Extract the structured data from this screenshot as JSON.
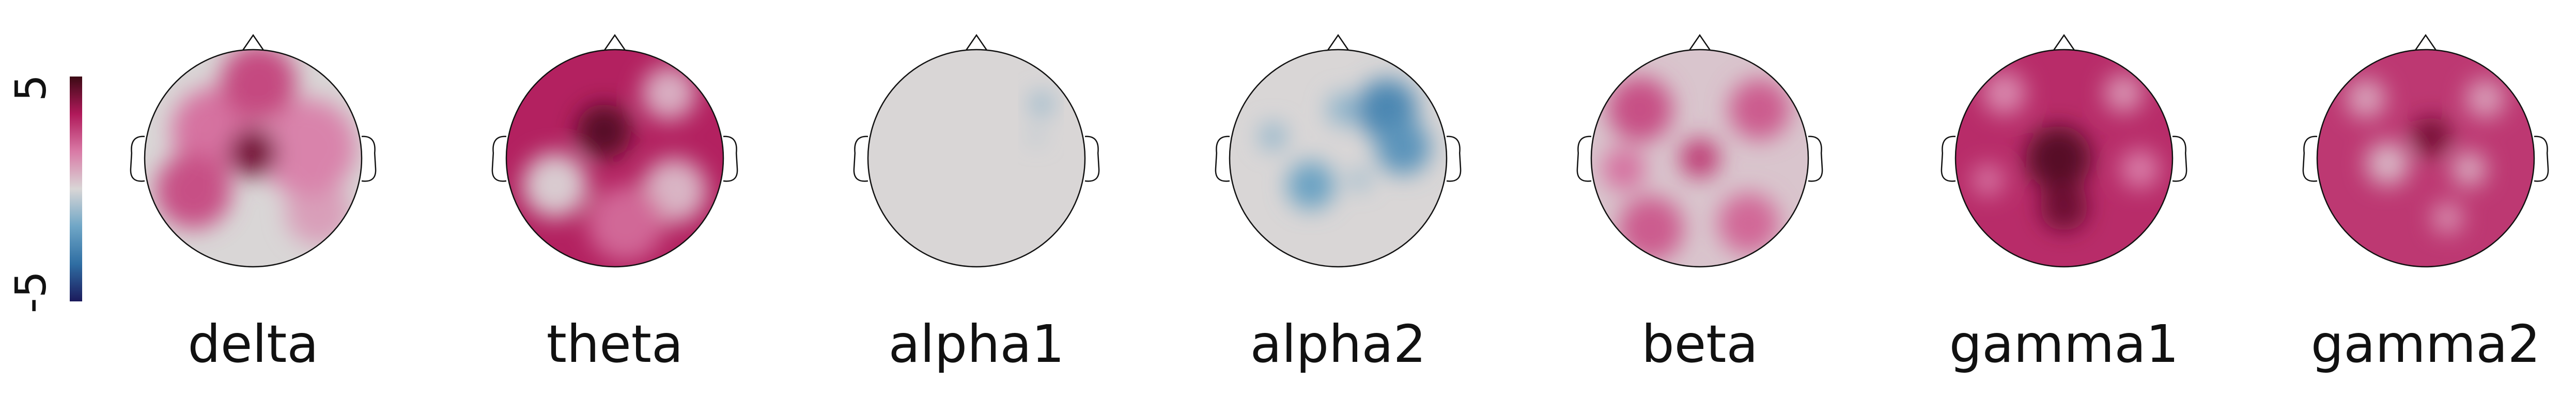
{
  "chart_data": {
    "type": "heatmap",
    "colorbar": {
      "min_label": "-5",
      "max_label": "5",
      "vmin": -5,
      "vmax": 5,
      "colors": [
        "#1b1a5c",
        "#2f6ea3",
        "#6fa6c6",
        "#d9d6d6",
        "#d97aa6",
        "#b0195a",
        "#3b0a14"
      ]
    },
    "topomaps": [
      {
        "label": "delta",
        "blobs": [
          {
            "x": 0.15,
            "y": 0.55,
            "r": 0.55,
            "v": 0.0
          },
          {
            "x": 0.6,
            "y": 0.5,
            "r": 0.3,
            "v": 1.0
          },
          {
            "x": 0.5,
            "y": -0.1,
            "r": 0.45,
            "v": 1.5
          },
          {
            "x": -0.35,
            "y": -0.25,
            "r": 0.4,
            "v": 1.8
          },
          {
            "x": 0.0,
            "y": -0.05,
            "r": 0.22,
            "v": 4.2
          },
          {
            "x": 0.05,
            "y": -0.7,
            "r": 0.35,
            "v": 2.5
          },
          {
            "x": -0.55,
            "y": 0.3,
            "r": 0.35,
            "v": 2.4
          }
        ]
      },
      {
        "label": "theta",
        "blobs": [
          {
            "x": 0.0,
            "y": -0.2,
            "r": 0.55,
            "v": 3.2
          },
          {
            "x": -0.1,
            "y": -0.25,
            "r": 0.25,
            "v": 4.6
          },
          {
            "x": -0.55,
            "y": 0.25,
            "r": 0.3,
            "v": 0.2
          },
          {
            "x": 0.55,
            "y": 0.3,
            "r": 0.3,
            "v": 0.6
          },
          {
            "x": 0.5,
            "y": -0.6,
            "r": 0.25,
            "v": 0.7
          },
          {
            "x": 0.1,
            "y": 0.6,
            "r": 0.35,
            "v": 2.0
          }
        ]
      },
      {
        "label": "alpha1",
        "blobs": [
          {
            "x": 0.0,
            "y": 0.0,
            "r": 0.8,
            "v": 0.0
          },
          {
            "x": 0.6,
            "y": -0.5,
            "r": 0.1,
            "v": -1.2
          },
          {
            "x": 0.55,
            "y": -0.2,
            "r": 0.06,
            "v": -0.8
          }
        ]
      },
      {
        "label": "alpha2",
        "blobs": [
          {
            "x": 0.0,
            "y": 0.0,
            "r": 0.8,
            "v": 0.0
          },
          {
            "x": 0.45,
            "y": -0.45,
            "r": 0.28,
            "v": -2.6
          },
          {
            "x": 0.6,
            "y": -0.1,
            "r": 0.25,
            "v": -2.2
          },
          {
            "x": -0.25,
            "y": 0.25,
            "r": 0.22,
            "v": -1.8
          },
          {
            "x": -0.6,
            "y": -0.2,
            "r": 0.12,
            "v": -1.2
          },
          {
            "x": 0.2,
            "y": 0.2,
            "r": 0.08,
            "v": -1.4
          },
          {
            "x": 0.05,
            "y": -0.45,
            "r": 0.15,
            "v": -1.2
          }
        ]
      },
      {
        "label": "beta",
        "blobs": [
          {
            "x": 0.0,
            "y": 0.0,
            "r": 0.7,
            "v": 0.3
          },
          {
            "x": 0.0,
            "y": 0.0,
            "r": 0.18,
            "v": 2.8
          },
          {
            "x": -0.55,
            "y": -0.45,
            "r": 0.3,
            "v": 2.4
          },
          {
            "x": 0.55,
            "y": -0.45,
            "r": 0.28,
            "v": 2.2
          },
          {
            "x": -0.45,
            "y": 0.65,
            "r": 0.3,
            "v": 2.2
          },
          {
            "x": 0.45,
            "y": 0.6,
            "r": 0.28,
            "v": 2.0
          },
          {
            "x": -0.7,
            "y": 0.1,
            "r": 0.2,
            "v": 1.8
          }
        ]
      },
      {
        "label": "gamma1",
        "blobs": [
          {
            "x": 0.0,
            "y": 0.0,
            "r": 0.85,
            "v": 3.0
          },
          {
            "x": -0.05,
            "y": 0.0,
            "r": 0.3,
            "v": 4.6
          },
          {
            "x": 0.0,
            "y": 0.45,
            "r": 0.22,
            "v": 4.3
          },
          {
            "x": -0.55,
            "y": -0.6,
            "r": 0.2,
            "v": 1.4
          },
          {
            "x": 0.55,
            "y": -0.6,
            "r": 0.18,
            "v": 1.2
          },
          {
            "x": 0.7,
            "y": 0.1,
            "r": 0.18,
            "v": 1.6
          },
          {
            "x": -0.7,
            "y": 0.2,
            "r": 0.15,
            "v": 1.8
          }
        ]
      },
      {
        "label": "gamma2",
        "blobs": [
          {
            "x": 0.0,
            "y": 0.0,
            "r": 0.85,
            "v": 2.8
          },
          {
            "x": 0.05,
            "y": -0.2,
            "r": 0.18,
            "v": 4.2
          },
          {
            "x": -0.35,
            "y": 0.05,
            "r": 0.2,
            "v": 0.6
          },
          {
            "x": 0.4,
            "y": 0.1,
            "r": 0.16,
            "v": 0.8
          },
          {
            "x": -0.55,
            "y": -0.55,
            "r": 0.18,
            "v": 0.9
          },
          {
            "x": 0.55,
            "y": -0.55,
            "r": 0.18,
            "v": 1.0
          },
          {
            "x": 0.2,
            "y": 0.55,
            "r": 0.14,
            "v": 1.2
          }
        ]
      }
    ]
  }
}
